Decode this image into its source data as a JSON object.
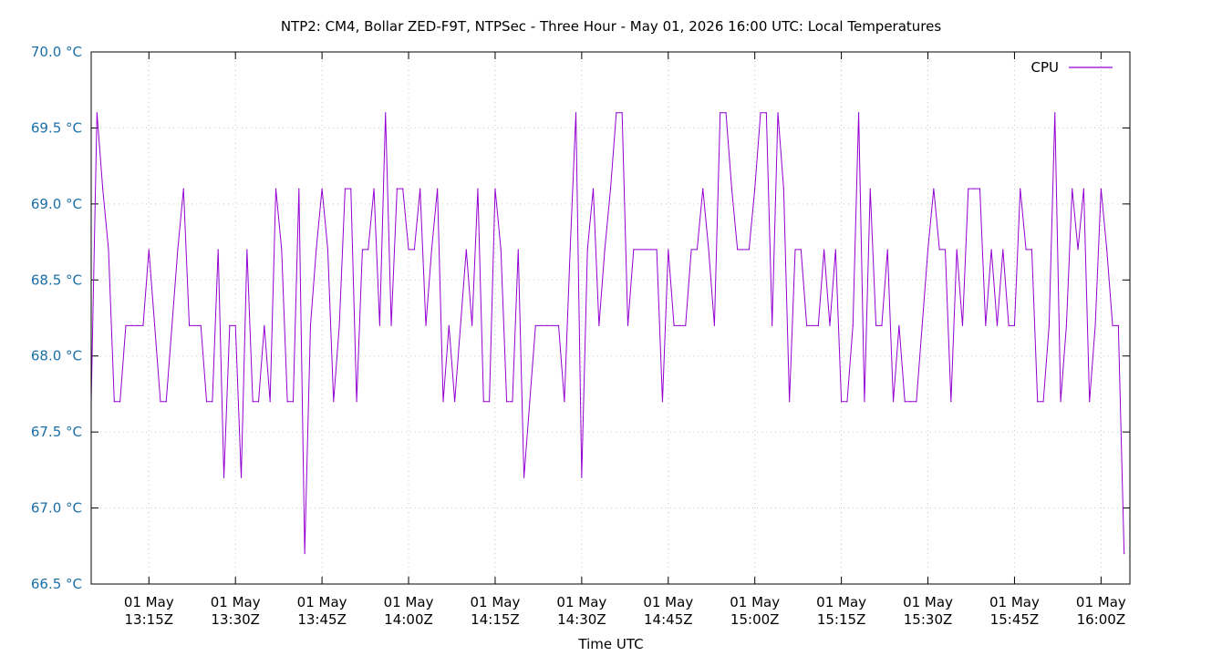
{
  "chart_data": {
    "type": "line",
    "title": "NTP2: CM4, Bollar ZED-F9T, NTPSec - Three Hour - May 01, 2026 16:00 UTC: Local Temperatures",
    "xlabel": "Time UTC",
    "ylabel": "",
    "ylim": [
      66.5,
      70.0
    ],
    "xlim": [
      "2026-05-01 13:05",
      "2026-05-01 16:05"
    ],
    "grid": true,
    "legend_position": "top-right",
    "y_ticks": [
      "66.5 °C",
      "67.0 °C",
      "67.5 °C",
      "68.0 °C",
      "68.5 °C",
      "69.0 °C",
      "69.5 °C",
      "70.0 °C"
    ],
    "y_tick_values": [
      66.5,
      67.0,
      67.5,
      68.0,
      68.5,
      69.0,
      69.5,
      70.0
    ],
    "x_ticks": [
      {
        "time": "2026-05-01 13:15",
        "line1": "01 May",
        "line2": "13:15Z"
      },
      {
        "time": "2026-05-01 13:30",
        "line1": "01 May",
        "line2": "13:30Z"
      },
      {
        "time": "2026-05-01 13:45",
        "line1": "01 May",
        "line2": "13:45Z"
      },
      {
        "time": "2026-05-01 14:00",
        "line1": "01 May",
        "line2": "14:00Z"
      },
      {
        "time": "2026-05-01 14:15",
        "line1": "01 May",
        "line2": "14:15Z"
      },
      {
        "time": "2026-05-01 14:30",
        "line1": "01 May",
        "line2": "14:30Z"
      },
      {
        "time": "2026-05-01 14:45",
        "line1": "01 May",
        "line2": "14:45Z"
      },
      {
        "time": "2026-05-01 15:00",
        "line1": "01 May",
        "line2": "15:00Z"
      },
      {
        "time": "2026-05-01 15:15",
        "line1": "01 May",
        "line2": "15:15Z"
      },
      {
        "time": "2026-05-01 15:30",
        "line1": "01 May",
        "line2": "15:30Z"
      },
      {
        "time": "2026-05-01 15:45",
        "line1": "01 May",
        "line2": "15:45Z"
      },
      {
        "time": "2026-05-01 16:00",
        "line1": "01 May",
        "line2": "16:00Z"
      }
    ],
    "series": [
      {
        "name": "CPU",
        "color": "#9400d3",
        "points": [
          [
            "13:05:00",
            67.7
          ],
          [
            "13:06:00",
            69.6
          ],
          [
            "13:07:00",
            69.1
          ],
          [
            "13:08:00",
            68.7
          ],
          [
            "13:09:00",
            67.7
          ],
          [
            "13:10:00",
            67.7
          ],
          [
            "13:11:00",
            68.2
          ],
          [
            "13:12:00",
            68.2
          ],
          [
            "13:13:00",
            68.2
          ],
          [
            "13:14:00",
            68.2
          ],
          [
            "13:15:00",
            68.7
          ],
          [
            "13:16:00",
            68.2
          ],
          [
            "13:17:00",
            67.7
          ],
          [
            "13:18:00",
            67.7
          ],
          [
            "13:19:00",
            68.2
          ],
          [
            "13:20:00",
            68.7
          ],
          [
            "13:21:00",
            69.1
          ],
          [
            "13:22:00",
            68.2
          ],
          [
            "13:23:00",
            68.2
          ],
          [
            "13:24:00",
            68.2
          ],
          [
            "13:25:00",
            67.7
          ],
          [
            "13:26:00",
            67.7
          ],
          [
            "13:27:00",
            68.7
          ],
          [
            "13:28:00",
            67.2
          ],
          [
            "13:29:00",
            68.2
          ],
          [
            "13:30:00",
            68.2
          ],
          [
            "13:31:00",
            67.2
          ],
          [
            "13:32:00",
            68.7
          ],
          [
            "13:33:00",
            67.7
          ],
          [
            "13:34:00",
            67.7
          ],
          [
            "13:35:00",
            68.2
          ],
          [
            "13:36:00",
            67.7
          ],
          [
            "13:37:00",
            69.1
          ],
          [
            "13:38:00",
            68.7
          ],
          [
            "13:39:00",
            67.7
          ],
          [
            "13:40:00",
            67.7
          ],
          [
            "13:41:00",
            69.1
          ],
          [
            "13:42:00",
            66.7
          ],
          [
            "13:43:00",
            68.2
          ],
          [
            "13:44:00",
            68.7
          ],
          [
            "13:45:00",
            69.1
          ],
          [
            "13:46:00",
            68.7
          ],
          [
            "13:47:00",
            67.7
          ],
          [
            "13:48:00",
            68.2
          ],
          [
            "13:49:00",
            69.1
          ],
          [
            "13:50:00",
            69.1
          ],
          [
            "13:51:00",
            67.7
          ],
          [
            "13:52:00",
            68.7
          ],
          [
            "13:53:00",
            68.7
          ],
          [
            "13:54:00",
            69.1
          ],
          [
            "13:55:00",
            68.2
          ],
          [
            "13:56:00",
            69.6
          ],
          [
            "13:57:00",
            68.2
          ],
          [
            "13:58:00",
            69.1
          ],
          [
            "13:59:00",
            69.1
          ],
          [
            "14:00:00",
            68.7
          ],
          [
            "14:01:00",
            68.7
          ],
          [
            "14:02:00",
            69.1
          ],
          [
            "14:03:00",
            68.2
          ],
          [
            "14:04:00",
            68.7
          ],
          [
            "14:05:00",
            69.1
          ],
          [
            "14:06:00",
            67.7
          ],
          [
            "14:07:00",
            68.2
          ],
          [
            "14:08:00",
            67.7
          ],
          [
            "14:09:00",
            68.2
          ],
          [
            "14:10:00",
            68.7
          ],
          [
            "14:11:00",
            68.2
          ],
          [
            "14:12:00",
            69.1
          ],
          [
            "14:13:00",
            67.7
          ],
          [
            "14:14:00",
            67.7
          ],
          [
            "14:15:00",
            69.1
          ],
          [
            "14:16:00",
            68.7
          ],
          [
            "14:17:00",
            67.7
          ],
          [
            "14:18:00",
            67.7
          ],
          [
            "14:19:00",
            68.7
          ],
          [
            "14:20:00",
            67.2
          ],
          [
            "14:21:00",
            67.7
          ],
          [
            "14:22:00",
            68.2
          ],
          [
            "14:23:00",
            68.2
          ],
          [
            "14:24:00",
            68.2
          ],
          [
            "14:25:00",
            68.2
          ],
          [
            "14:26:00",
            68.2
          ],
          [
            "14:27:00",
            67.7
          ],
          [
            "14:28:00",
            68.7
          ],
          [
            "14:29:00",
            69.6
          ],
          [
            "14:30:00",
            67.2
          ],
          [
            "14:31:00",
            68.7
          ],
          [
            "14:32:00",
            69.1
          ],
          [
            "14:33:00",
            68.2
          ],
          [
            "14:34:00",
            68.7
          ],
          [
            "14:35:00",
            69.1
          ],
          [
            "14:36:00",
            69.6
          ],
          [
            "14:37:00",
            69.6
          ],
          [
            "14:38:00",
            68.2
          ],
          [
            "14:39:00",
            68.7
          ],
          [
            "14:40:00",
            68.7
          ],
          [
            "14:41:00",
            68.7
          ],
          [
            "14:42:00",
            68.7
          ],
          [
            "14:43:00",
            68.7
          ],
          [
            "14:44:00",
            67.7
          ],
          [
            "14:45:00",
            68.7
          ],
          [
            "14:46:00",
            68.2
          ],
          [
            "14:47:00",
            68.2
          ],
          [
            "14:48:00",
            68.2
          ],
          [
            "14:49:00",
            68.7
          ],
          [
            "14:50:00",
            68.7
          ],
          [
            "14:51:00",
            69.1
          ],
          [
            "14:52:00",
            68.7
          ],
          [
            "14:53:00",
            68.2
          ],
          [
            "14:54:00",
            69.6
          ],
          [
            "14:55:00",
            69.6
          ],
          [
            "14:56:00",
            69.1
          ],
          [
            "14:57:00",
            68.7
          ],
          [
            "14:58:00",
            68.7
          ],
          [
            "14:59:00",
            68.7
          ],
          [
            "15:00:00",
            69.1
          ],
          [
            "15:01:00",
            69.6
          ],
          [
            "15:02:00",
            69.6
          ],
          [
            "15:03:00",
            68.2
          ],
          [
            "15:04:00",
            69.6
          ],
          [
            "15:05:00",
            69.1
          ],
          [
            "15:06:00",
            67.7
          ],
          [
            "15:07:00",
            68.7
          ],
          [
            "15:08:00",
            68.7
          ],
          [
            "15:09:00",
            68.2
          ],
          [
            "15:10:00",
            68.2
          ],
          [
            "15:11:00",
            68.2
          ],
          [
            "15:12:00",
            68.7
          ],
          [
            "15:13:00",
            68.2
          ],
          [
            "15:14:00",
            68.7
          ],
          [
            "15:15:00",
            67.7
          ],
          [
            "15:16:00",
            67.7
          ],
          [
            "15:17:00",
            68.2
          ],
          [
            "15:18:00",
            69.6
          ],
          [
            "15:19:00",
            67.7
          ],
          [
            "15:20:00",
            69.1
          ],
          [
            "15:21:00",
            68.2
          ],
          [
            "15:22:00",
            68.2
          ],
          [
            "15:23:00",
            68.7
          ],
          [
            "15:24:00",
            67.7
          ],
          [
            "15:25:00",
            68.2
          ],
          [
            "15:26:00",
            67.7
          ],
          [
            "15:27:00",
            67.7
          ],
          [
            "15:28:00",
            67.7
          ],
          [
            "15:29:00",
            68.2
          ],
          [
            "15:30:00",
            68.7
          ],
          [
            "15:31:00",
            69.1
          ],
          [
            "15:32:00",
            68.7
          ],
          [
            "15:33:00",
            68.7
          ],
          [
            "15:34:00",
            67.7
          ],
          [
            "15:35:00",
            68.7
          ],
          [
            "15:36:00",
            68.2
          ],
          [
            "15:37:00",
            69.1
          ],
          [
            "15:38:00",
            69.1
          ],
          [
            "15:39:00",
            69.1
          ],
          [
            "15:40:00",
            68.2
          ],
          [
            "15:41:00",
            68.7
          ],
          [
            "15:42:00",
            68.2
          ],
          [
            "15:43:00",
            68.7
          ],
          [
            "15:44:00",
            68.2
          ],
          [
            "15:45:00",
            68.2
          ],
          [
            "15:46:00",
            69.1
          ],
          [
            "15:47:00",
            68.7
          ],
          [
            "15:48:00",
            68.7
          ],
          [
            "15:49:00",
            67.7
          ],
          [
            "15:50:00",
            67.7
          ],
          [
            "15:51:00",
            68.2
          ],
          [
            "15:52:00",
            69.6
          ],
          [
            "15:53:00",
            67.7
          ],
          [
            "15:54:00",
            68.2
          ],
          [
            "15:55:00",
            69.1
          ],
          [
            "15:56:00",
            68.7
          ],
          [
            "15:57:00",
            69.1
          ],
          [
            "15:58:00",
            67.7
          ],
          [
            "15:59:00",
            68.2
          ],
          [
            "16:00:00",
            69.1
          ],
          [
            "16:01:00",
            68.7
          ],
          [
            "16:02:00",
            68.2
          ],
          [
            "16:03:00",
            68.2
          ],
          [
            "16:04:00",
            66.7
          ]
        ]
      }
    ],
    "colors": {
      "y_tick_text": "#1a6fa8",
      "grid": "#c8c8c8",
      "axis": "#000000"
    }
  }
}
